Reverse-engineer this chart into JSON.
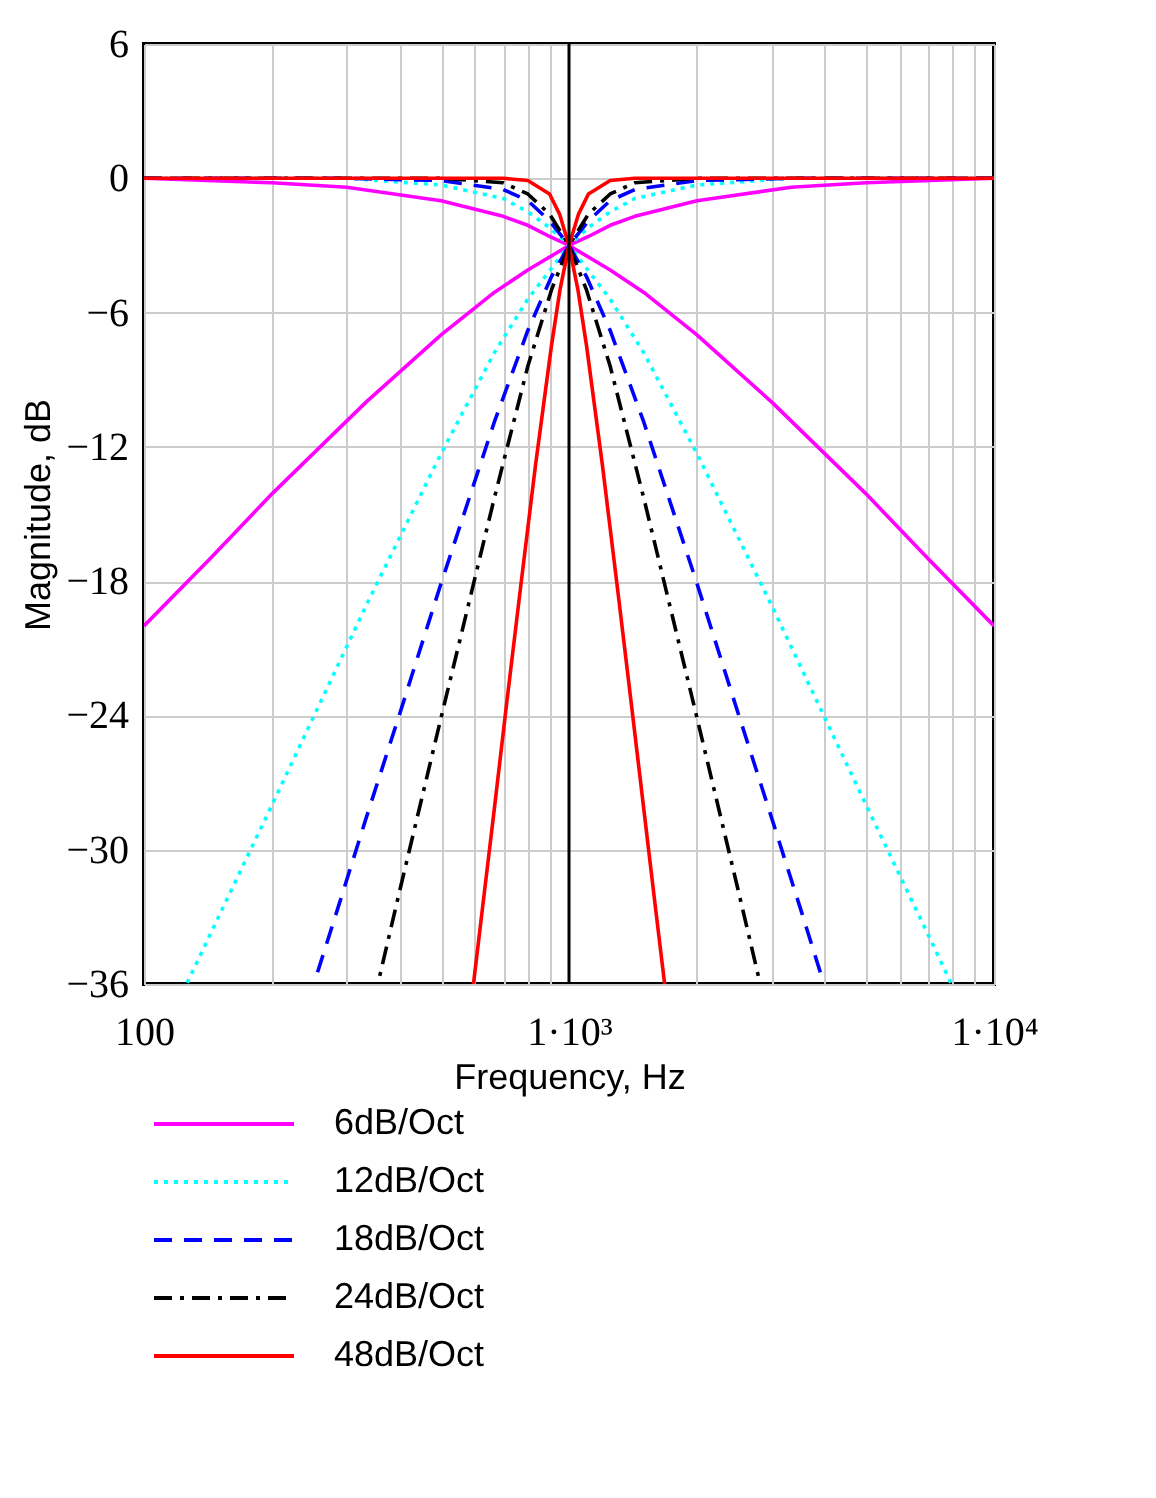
{
  "chart_data": {
    "type": "line",
    "xlabel": "Frequency, Hz",
    "ylabel": "Magnitude, dB",
    "log": "x",
    "grid": true,
    "legend": "bottom",
    "xlim": [
      100,
      10000
    ],
    "ylim": [
      -36,
      6
    ],
    "xticks": [
      100,
      {
        "value": 200,
        "label": null
      },
      {
        "value": 300,
        "label": null
      },
      {
        "value": 400,
        "label": null
      },
      {
        "value": 500,
        "label": null
      },
      {
        "value": 600,
        "label": null
      },
      {
        "value": 700,
        "label": null
      },
      {
        "value": 800,
        "label": null
      },
      {
        "value": 900,
        "label": null
      },
      {
        "value": 1000,
        "label": "1·10³"
      },
      {
        "value": 2000,
        "label": null
      },
      {
        "value": 3000,
        "label": null
      },
      {
        "value": 4000,
        "label": null
      },
      {
        "value": 5000,
        "label": null
      },
      {
        "value": 6000,
        "label": null
      },
      {
        "value": 7000,
        "label": null
      },
      {
        "value": 8000,
        "label": null
      },
      {
        "value": 9000,
        "label": null
      },
      {
        "value": 10000,
        "label": "1·10⁴"
      }
    ],
    "yticks": [
      {
        "value": -36,
        "label": "−36"
      },
      {
        "value": -30,
        "label": "−30"
      },
      {
        "value": -24,
        "label": "−24"
      },
      {
        "value": -18,
        "label": "−18"
      },
      {
        "value": -12,
        "label": "−12"
      },
      {
        "value": -6,
        "label": "−6"
      },
      0,
      6
    ],
    "ref_lines": [
      {
        "axis": "x",
        "value": 1000,
        "color": "#000000"
      }
    ],
    "series": [
      {
        "name": "6dB/Oct",
        "color": "#ff00ff",
        "line_style": "solid",
        "x": [
          100,
          200,
          300,
          500,
          700,
          800,
          900,
          1000,
          1250,
          1500,
          2000,
          3000,
          5000,
          7000,
          10000
        ],
        "values": [
          0.0,
          -0.2,
          -0.4,
          -1.0,
          -1.7,
          -2.1,
          -2.6,
          -3.0,
          -4.1,
          -5.1,
          -7.0,
          -10.0,
          -14.1,
          -17.0,
          -20.0
        ]
      },
      {
        "color": "#ff00ff",
        "line_style": "solid",
        "x": [
          10000,
          5000,
          3333,
          2000,
          1429,
          1250,
          1111,
          1000,
          800,
          667,
          500,
          333,
          200,
          143,
          100
        ],
        "values": [
          0.0,
          -0.2,
          -0.4,
          -1.0,
          -1.7,
          -2.1,
          -2.6,
          -3.0,
          -4.1,
          -5.1,
          -7.0,
          -10.0,
          -14.1,
          -17.0,
          -20.0
        ]
      },
      {
        "name": "12dB/Oct",
        "color": "#00ffff",
        "line_style": "dotted",
        "x": [
          100,
          200,
          300,
          500,
          700,
          800,
          900,
          1000,
          1250,
          1500,
          2000,
          3000,
          5000,
          7000,
          7940
        ],
        "values": [
          0.0,
          0.0,
          0.0,
          -0.3,
          -0.9,
          -1.5,
          -2.2,
          -3.0,
          -5.4,
          -7.8,
          -12.3,
          -19.1,
          -28.0,
          -33.8,
          -36.0
        ]
      },
      {
        "color": "#00ffff",
        "line_style": "dotted",
        "x": [
          10000,
          5000,
          3333,
          2000,
          1429,
          1250,
          1111,
          1000,
          800,
          667,
          500,
          333,
          200,
          143,
          126
        ],
        "values": [
          0.0,
          0.0,
          0.0,
          -0.3,
          -0.9,
          -1.5,
          -2.2,
          -3.0,
          -5.4,
          -7.8,
          -12.3,
          -19.1,
          -28.0,
          -33.8,
          -36.0
        ]
      },
      {
        "name": "18dB/Oct",
        "color": "#0000ff",
        "line_style": "dashed",
        "x": [
          100,
          300,
          500,
          700,
          800,
          900,
          1000,
          1100,
          1250,
          1500,
          2000,
          2500,
          3000,
          3500,
          3981
        ],
        "values": [
          0.0,
          0.0,
          -0.1,
          -0.5,
          -1.0,
          -1.9,
          -3.0,
          -4.4,
          -6.8,
          -10.9,
          -18.1,
          -23.9,
          -28.6,
          -32.6,
          -36.0
        ]
      },
      {
        "color": "#0000ff",
        "line_style": "dashed",
        "x": [
          10000,
          3333,
          2000,
          1429,
          1250,
          1111,
          1000,
          909,
          800,
          667,
          500,
          400,
          333,
          286,
          251
        ],
        "values": [
          0.0,
          0.0,
          -0.1,
          -0.5,
          -1.0,
          -1.9,
          -3.0,
          -4.4,
          -6.8,
          -10.9,
          -18.1,
          -23.9,
          -28.6,
          -32.6,
          -36.0
        ]
      },
      {
        "name": "24dB/Oct",
        "color": "#000000",
        "line_style": "dashdot",
        "x": [
          100,
          300,
          500,
          700,
          800,
          900,
          1000,
          1100,
          1250,
          1500,
          2000,
          2500,
          2818
        ],
        "values": [
          0.0,
          0.0,
          0.0,
          -0.2,
          -0.7,
          -1.6,
          -3.0,
          -5.0,
          -8.4,
          -14.3,
          -24.1,
          -31.8,
          -36.0
        ]
      },
      {
        "color": "#000000",
        "line_style": "dashdot",
        "x": [
          10000,
          3333,
          2000,
          1429,
          1250,
          1111,
          1000,
          909,
          800,
          667,
          500,
          400,
          355
        ],
        "values": [
          0.0,
          0.0,
          0.0,
          -0.2,
          -0.7,
          -1.6,
          -3.0,
          -5.0,
          -8.4,
          -14.3,
          -24.1,
          -31.8,
          -36.0
        ]
      },
      {
        "name": "48dB/Oct",
        "color": "#ff0000",
        "line_style": "solid",
        "x": [
          100,
          500,
          700,
          800,
          900,
          950,
          1000,
          1050,
          1100,
          1200,
          1300,
          1400,
          1500,
          1600,
          1679
        ],
        "values": [
          0.0,
          0.0,
          0.0,
          -0.1,
          -0.7,
          -1.6,
          -3.0,
          -5.0,
          -7.5,
          -12.9,
          -18.3,
          -23.4,
          -28.2,
          -32.7,
          -36.0
        ]
      },
      {
        "color": "#ff0000",
        "line_style": "solid",
        "x": [
          10000,
          2000,
          1429,
          1250,
          1111,
          1053,
          1000,
          952,
          909,
          833,
          769,
          714,
          667,
          625,
          596
        ],
        "values": [
          0.0,
          0.0,
          0.0,
          -0.1,
          -0.7,
          -1.6,
          -3.0,
          -5.0,
          -7.5,
          -12.9,
          -18.3,
          -23.4,
          -28.2,
          -32.7,
          -36.0
        ]
      }
    ]
  }
}
